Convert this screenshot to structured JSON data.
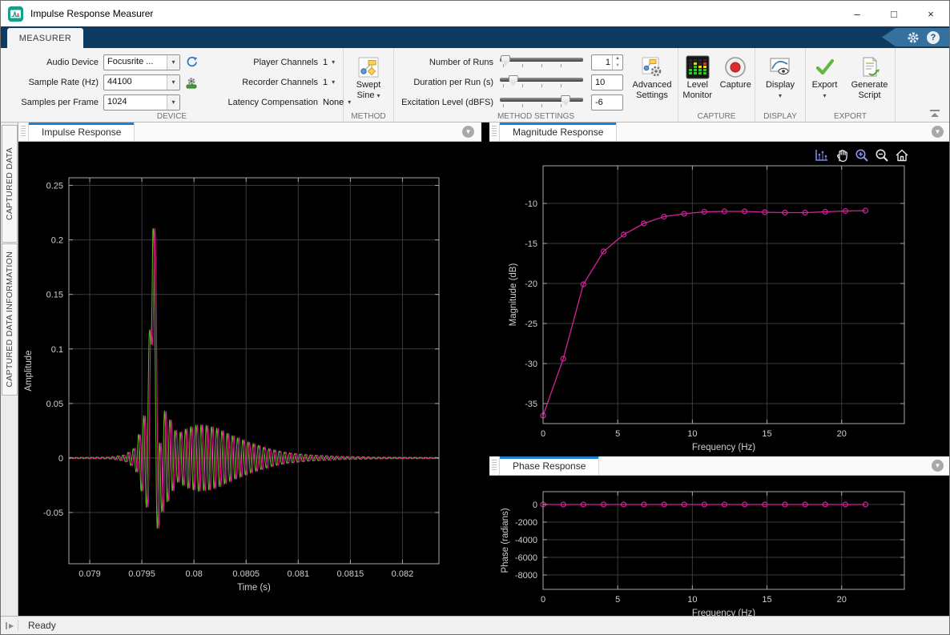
{
  "window": {
    "title": "Impulse Response Measurer",
    "minimize": "–",
    "maximize": "□",
    "close": "×"
  },
  "ribbon": {
    "tab": "MEASURER",
    "help": "?"
  },
  "icons": {
    "dropdown": "▾",
    "spin_up": "▲",
    "spin_down": "▼",
    "panel_collapse": "▼",
    "status_expand": "▶"
  },
  "toolstrip": {
    "device": {
      "section": "DEVICE",
      "rows": [
        {
          "label": "Audio Device",
          "value": "Focusrite ..."
        },
        {
          "label": "Sample Rate (Hz)",
          "value": "44100"
        },
        {
          "label": "Samples per Frame",
          "value": "1024"
        }
      ],
      "rows2": [
        {
          "label": "Player Channels",
          "value": "1"
        },
        {
          "label": "Recorder Channels",
          "value": "1"
        },
        {
          "label": "Latency Compensation",
          "value": "None"
        }
      ]
    },
    "method": {
      "section": "METHOD",
      "line1": "Swept",
      "line2": "Sine"
    },
    "method_settings": {
      "section": "METHOD SETTINGS",
      "rows": [
        {
          "label": "Number of Runs",
          "value": "1",
          "slider_percent": 3
        },
        {
          "label": "Duration per Run (s)",
          "value": "10",
          "slider_percent": 16
        },
        {
          "label": "Excitation Level (dBFS)",
          "value": "-6",
          "slider_percent": 79
        }
      ],
      "advanced_line1": "Advanced",
      "advanced_line2": "Settings"
    },
    "capture": {
      "section": "CAPTURE",
      "level_line1": "Level",
      "level_line2": "Monitor",
      "capture_label": "Capture"
    },
    "display": {
      "section": "DISPLAY",
      "label": "Display"
    },
    "export": {
      "section": "EXPORT",
      "export_label": "Export",
      "script_line1": "Generate",
      "script_line2": "Script"
    }
  },
  "side_tabs": {
    "captured_data": "CAPTURED DATA",
    "captured_data_information": "CAPTURED DATA INFORMATION"
  },
  "panels": {
    "impulse": "Impulse Response",
    "magnitude": "Magnitude Response",
    "phase": "Phase Response"
  },
  "status": {
    "text": "Ready"
  },
  "chart_data": [
    {
      "id": "impulse",
      "type": "line",
      "title": "",
      "xlabel": "Time (s)",
      "ylabel": "Amplitude",
      "xlim": [
        0.0788,
        0.08235
      ],
      "ylim": [
        -0.097,
        0.257
      ],
      "xtick_values": [
        0.079,
        0.0795,
        0.08,
        0.0805,
        0.081,
        0.0815,
        0.082
      ],
      "xtick_labels": [
        "0.079",
        "0.0795",
        "0.08",
        "0.0805",
        "0.081",
        "0.0815",
        "0.082"
      ],
      "ytick_values": [
        -0.05,
        0,
        0.05,
        0.1,
        0.15,
        0.2,
        0.25
      ],
      "ytick_labels": [
        "-0.05",
        "0",
        "0.05",
        "0.1",
        "0.15",
        "0.2",
        "0.25"
      ],
      "grid": true,
      "background": "#000000",
      "axis_color": "#a8a8a8",
      "grid_color": "#3a3a3a",
      "label_color": "#cfcfcf",
      "ylabel_dx": -47,
      "series": [
        {
          "name": "impulse-response-green-run",
          "color": "#55c314",
          "synth": true,
          "t_offset": -1.5e-05
        },
        {
          "name": "impulse-response-magenta-run",
          "color": "#e8189f",
          "synth": true,
          "t_offset": 0
        }
      ],
      "synthesis": {
        "carrier_hz": 20000,
        "t_start": 0.0788,
        "t_end": 0.08235,
        "dt": 3.5e-06,
        "spike": {
          "t": 0.07962,
          "peak": 0.222,
          "trough": -0.062,
          "width": 5e-05
        },
        "envelope": [
          [
            0.0788,
            0.0006
          ],
          [
            0.0792,
            0.0008
          ],
          [
            0.07935,
            0.003
          ],
          [
            0.07945,
            0.01
          ],
          [
            0.0795,
            0.028
          ],
          [
            0.07955,
            0.045
          ],
          [
            0.0796,
            0.05
          ],
          [
            0.07968,
            0.048
          ],
          [
            0.07975,
            0.042
          ],
          [
            0.07985,
            0.022
          ],
          [
            0.07995,
            0.028
          ],
          [
            0.08005,
            0.031
          ],
          [
            0.08015,
            0.03
          ],
          [
            0.08025,
            0.027
          ],
          [
            0.08035,
            0.022
          ],
          [
            0.08045,
            0.018
          ],
          [
            0.08055,
            0.014
          ],
          [
            0.08065,
            0.011
          ],
          [
            0.08075,
            0.008
          ],
          [
            0.0809,
            0.005
          ],
          [
            0.0811,
            0.003
          ],
          [
            0.0814,
            0.0015
          ],
          [
            0.0818,
            0.0008
          ],
          [
            0.08235,
            0.0006
          ]
        ]
      }
    },
    {
      "id": "magnitude",
      "type": "line",
      "title": "",
      "xlabel": "Frequency (Hz)",
      "ylabel": "Magnitude (dB)",
      "xlim": [
        0,
        24.2
      ],
      "ylim": [
        -37.5,
        -5.3
      ],
      "xtick_values": [
        0,
        5,
        10,
        15,
        20
      ],
      "xtick_labels": [
        "0",
        "5",
        "10",
        "15",
        "20"
      ],
      "ytick_values": [
        -35,
        -30,
        -25,
        -20,
        -15,
        -10
      ],
      "ytick_labels": [
        "-35",
        "-30",
        "-25",
        "-20",
        "-15",
        "-10"
      ],
      "grid": true,
      "background": "#000000",
      "axis_color": "#a8a8a8",
      "grid_color": "#3a3a3a",
      "label_color": "#cfcfcf",
      "ylabel_dx": -34,
      "series": [
        {
          "name": "magnitude-response",
          "color": "#d6219c",
          "marker": "circle",
          "x": [
            0,
            1.35,
            2.7,
            4.05,
            5.4,
            6.75,
            8.1,
            9.45,
            10.8,
            12.15,
            13.5,
            14.85,
            16.2,
            17.55,
            18.9,
            20.25,
            21.6
          ],
          "y": [
            -36.5,
            -29.4,
            -20.1,
            -16.0,
            -13.9,
            -12.5,
            -11.65,
            -11.3,
            -11.05,
            -11.0,
            -11.0,
            -11.1,
            -11.15,
            -11.15,
            -11.05,
            -10.95,
            -10.9
          ]
        }
      ]
    },
    {
      "id": "phase",
      "type": "line",
      "title": "",
      "xlabel": "Frequency (Hz)",
      "ylabel": "Phase (radians)",
      "xlim": [
        0,
        24.2
      ],
      "ylim": [
        -9630,
        1450
      ],
      "xtick_values": [
        0,
        5,
        10,
        15,
        20
      ],
      "xtick_labels": [
        "0",
        "5",
        "10",
        "15",
        "20"
      ],
      "ytick_values": [
        -8000,
        -6000,
        -4000,
        -2000,
        0
      ],
      "ytick_labels": [
        "-8000",
        "-6000",
        "-4000",
        "-2000",
        "0"
      ],
      "grid": true,
      "background": "#000000",
      "axis_color": "#a8a8a8",
      "grid_color": "#3a3a3a",
      "label_color": "#cfcfcf",
      "ylabel_dx": -44,
      "series": [
        {
          "name": "phase-response",
          "color": "#d6219c",
          "marker": "circle",
          "x": [
            0,
            1.35,
            2.7,
            4.05,
            5.4,
            6.75,
            8.1,
            9.45,
            10.8,
            12.15,
            13.5,
            14.85,
            16.2,
            17.55,
            18.9,
            20.25,
            21.6
          ],
          "y": [
            0,
            0,
            0,
            0,
            0,
            0,
            0,
            0,
            0,
            0,
            0,
            0,
            0,
            0,
            0,
            0,
            0
          ]
        }
      ]
    }
  ]
}
